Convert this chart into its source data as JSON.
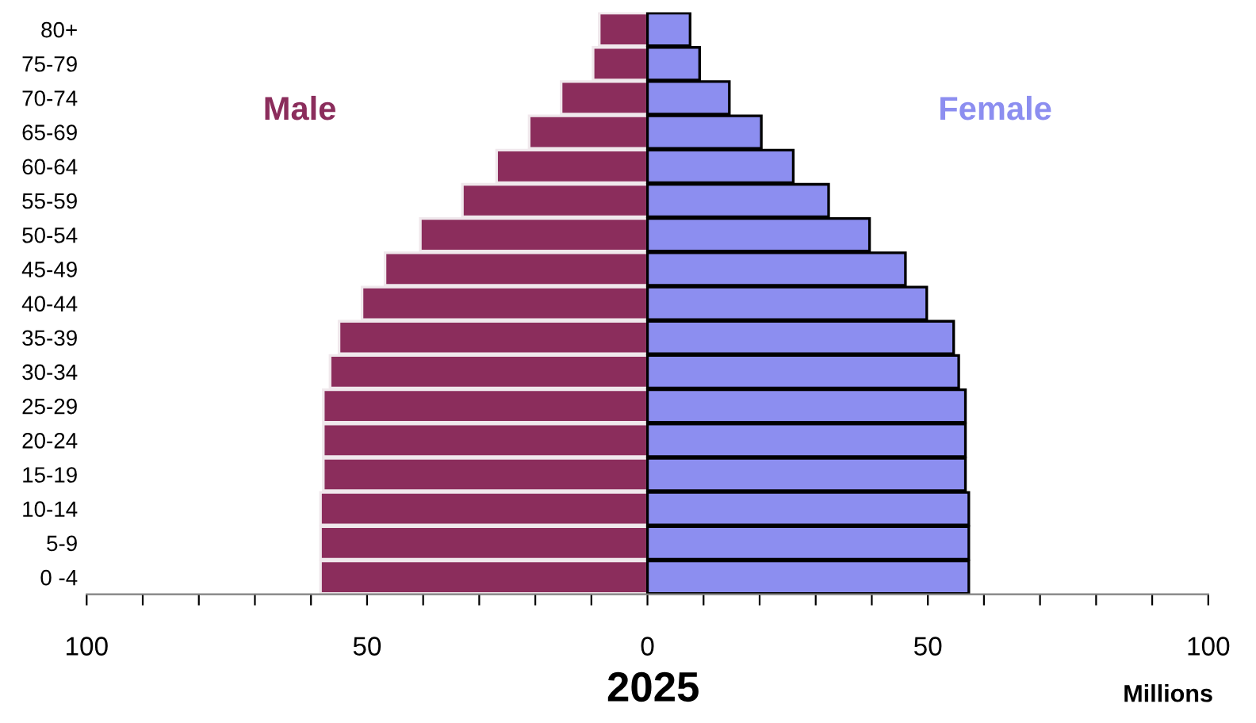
{
  "chart_data": {
    "type": "bar",
    "orientation": "horizontal",
    "stacked": true,
    "title": "2025",
    "xlabel": "Millions",
    "legend": false,
    "grid": false,
    "categories": [
      "80+",
      "75-79",
      "70-74",
      "65-69",
      "60-64",
      "55-59",
      "50-54",
      "45-49",
      "40-44",
      "35-39",
      "30-34",
      "25-29",
      "20-24",
      "15-19",
      "10-14",
      "5-9",
      "0 -4"
    ],
    "series": [
      {
        "name": "Male",
        "color": "#8b2d5c",
        "values": [
          -8.6,
          -9.7,
          -15.4,
          -21.1,
          -26.9,
          -33,
          -40.5,
          -46.8,
          -50.9,
          -55,
          -56.6,
          -57.8,
          -57.8,
          -57.8,
          -58.3,
          -58.3,
          -58.3
        ]
      },
      {
        "name": "Female",
        "color": "#8c8ef0",
        "values": [
          7.6,
          9.3,
          14.6,
          20.3,
          26,
          32.3,
          39.6,
          46,
          49.8,
          54.6,
          55.5,
          56.7,
          56.7,
          56.7,
          57.3,
          57.3,
          57.3
        ]
      }
    ],
    "xlim": [
      -100,
      100
    ],
    "xticks": [
      {
        "value": -100,
        "label": "100"
      },
      {
        "value": -90,
        "label": null
      },
      {
        "value": -80,
        "label": null
      },
      {
        "value": -70,
        "label": null
      },
      {
        "value": -60,
        "label": null
      },
      {
        "value": -50,
        "label": "50"
      },
      {
        "value": -40,
        "label": null
      },
      {
        "value": -30,
        "label": null
      },
      {
        "value": -20,
        "label": null
      },
      {
        "value": -10,
        "label": null
      },
      0,
      {
        "value": 10,
        "label": null
      },
      {
        "value": 20,
        "label": null
      },
      {
        "value": 30,
        "label": null
      },
      {
        "value": 40,
        "label": null
      },
      50,
      {
        "value": 60,
        "label": null
      },
      {
        "value": 70,
        "label": null
      },
      {
        "value": 80,
        "label": null
      },
      {
        "value": 90,
        "label": null
      },
      100
    ]
  }
}
